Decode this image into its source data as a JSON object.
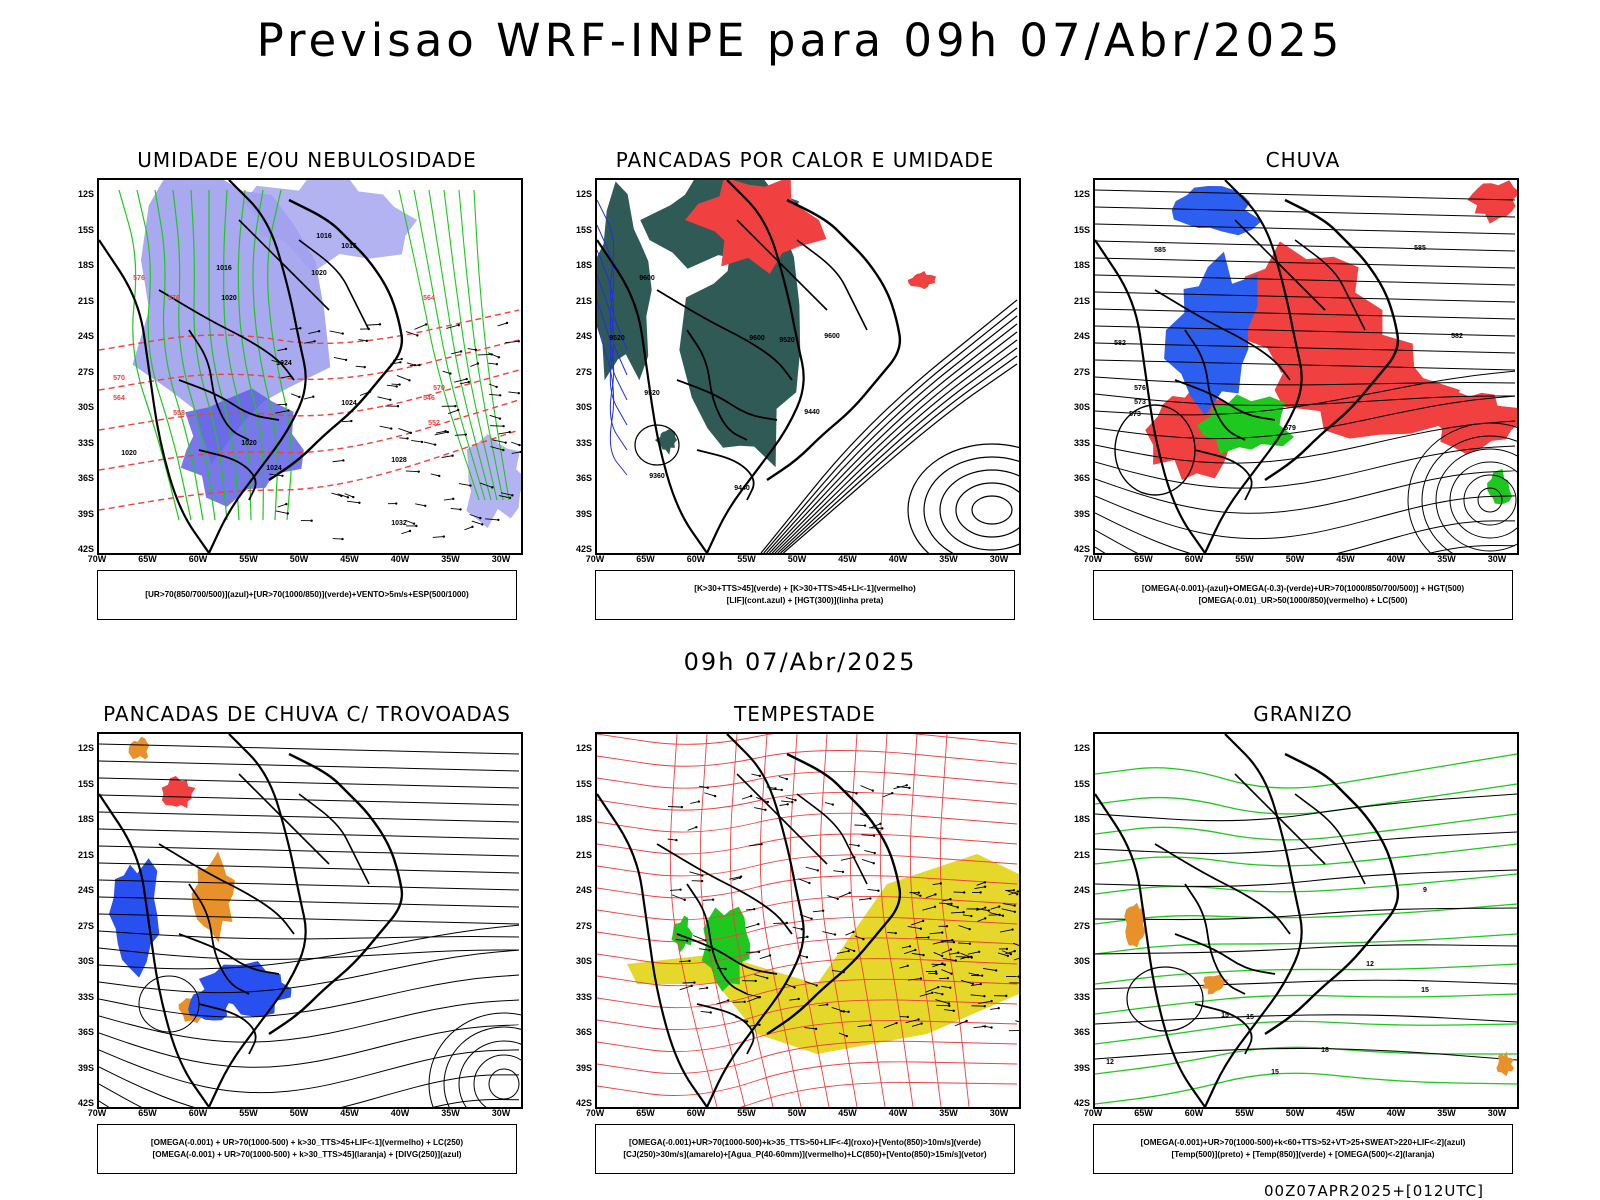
{
  "main_title": "Previsao WRF-INPE  para 09h 07/Abr/2025",
  "mid_title": "09h 07/Abr/2025",
  "footer": "00Z07APR2025+[012UTC]",
  "lat_ticks": [
    "12S",
    "15S",
    "18S",
    "21S",
    "24S",
    "27S",
    "30S",
    "33S",
    "36S",
    "39S",
    "42S"
  ],
  "lon_ticks": [
    "70W",
    "65W",
    "60W",
    "55W",
    "50W",
    "45W",
    "40W",
    "35W",
    "30W"
  ],
  "panels": [
    {
      "title": "UMIDADE E/OU NEBULOSIDADE",
      "legend": [
        "[UR>70(850/700/500)](azul)+[UR>70(1000/850)](verde)+VENTO>5m/s+ESP(500/1000)"
      ]
    },
    {
      "title": "PANCADAS POR CALOR E UMIDADE",
      "legend": [
        "[K>30+TTS>45](verde)  +  [K>30+TTS>45+LI<-1](vermelho)",
        "[LIF](cont.azul)  +  [HGT(300)](linha preta)"
      ]
    },
    {
      "title": "CHUVA",
      "legend": [
        "[OMEGA(-0.001)-(azul)+OMEGA(-0.3)-(verde)+UR>70(1000/850/700/500)]  +  HGT(500)",
        "[OMEGA(-0.01)_UR>50(1000/850)(vermelho)  +  LC(500)"
      ]
    },
    {
      "title": "PANCADAS DE CHUVA C/ TROVOADAS",
      "legend": [
        "[OMEGA(-0.001)  +  UR>70(1000-500)  +  k>30_TTS>45+LIF<-1](vermelho)  +  LC(250)",
        "[OMEGA(-0.001)  +  UR>70(1000-500)  +  k>30_TTS>45](laranja)  +  [DIVG(250)](azul)"
      ]
    },
    {
      "title": "TEMPESTADE",
      "legend": [
        "[OMEGA(-0.001)+UR>70(1000-500)+k>35_TTS>50+LIF<-4](roxo)+[Vento(850)>10m/s](verde)",
        "[CJ(250)>30m/s](amarelo)+[Agua_P(40-60mm)](vermelho)+LC(850)+[Vento(850)>15m/s](vetor)"
      ]
    },
    {
      "title": "GRANIZO",
      "legend": [
        "[OMEGA(-0.001)+UR>70(1000-500)+k<60+TTS>52+VT>25+SWEAT>220+LIF<-2](azul)",
        "[Temp(500)](preto)  +  [Temp(850)](verde)  +  [OMEGA(500)<-2](laranja)"
      ]
    }
  ],
  "contour_labels": {
    "p1": [
      "1016",
      "1016",
      "1016",
      "1020",
      "1020",
      "1024",
      "1024",
      "1024",
      "1020",
      "1020",
      "1028",
      "1032",
      "576",
      "576",
      "570",
      "564",
      "558",
      "552",
      "546",
      "570",
      "564"
    ],
    "p2": [
      "9600",
      "9520",
      "9600",
      "9600",
      "9520",
      "9520",
      "9440",
      "9360",
      "9440"
    ],
    "p3": [
      "585",
      "573",
      "576",
      "582",
      "585",
      "582",
      "579",
      "573"
    ],
    "p6": [
      "12",
      "15",
      "15",
      "15",
      "12",
      "18",
      "15",
      "9"
    ]
  },
  "colors": {
    "blue_fill": "#a0a0ee",
    "blue_dark": "#6060e6",
    "green": "#1ec81e",
    "red": "#f04040",
    "dark_teal": "#2f5a55",
    "orange": "#e8902a",
    "yellow": "#e6d82a",
    "blue": "#2850f0"
  }
}
